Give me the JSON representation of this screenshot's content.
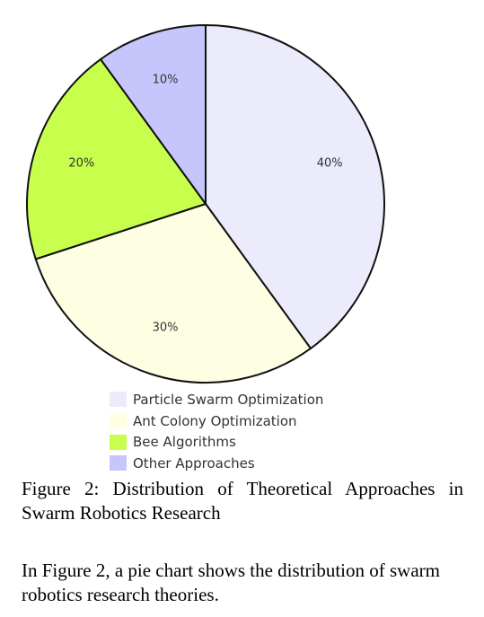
{
  "chart_data": {
    "type": "pie",
    "categories": [
      "Particle Swarm Optimization",
      "Ant Colony Optimization",
      "Bee Algorithms",
      "Other Approaches"
    ],
    "values": [
      40,
      30,
      20,
      10
    ],
    "value_labels": [
      "40%",
      "30%",
      "20%",
      "10%"
    ],
    "colors": [
      "#ebebfc",
      "#fefee2",
      "#c8ff4c",
      "#c6c6fc"
    ],
    "stroke_color": "#111111",
    "start_angle": "top, clockwise",
    "legend_position": "bottom"
  },
  "caption": "Figure 2: Distribution of Theoretical Approaches in Swarm Robotics Research",
  "body_text": "In Figure 2, a pie chart shows the distribution of swarm robotics research theories."
}
